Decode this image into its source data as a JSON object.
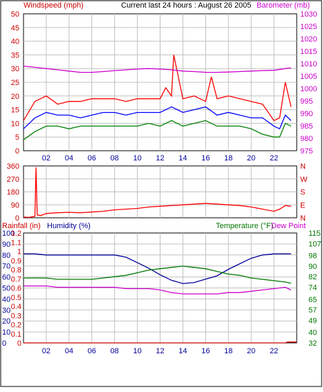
{
  "chart_data": [
    {
      "type": "line",
      "title": "Current last 24 hours : August 26 2005",
      "left_axis_label": "Windspeed (mph)",
      "right_axis_label": "Barometer (mb)",
      "x_ticks": [
        "02",
        "04",
        "06",
        "08",
        "10",
        "12",
        "14",
        "16",
        "18",
        "20",
        "22"
      ],
      "x_range_hours": [
        0,
        24
      ],
      "left_ticks": [
        "0",
        "5",
        "10",
        "15",
        "20",
        "25",
        "30",
        "35",
        "40",
        "45",
        "50"
      ],
      "left_ylim": [
        0,
        50
      ],
      "right_ticks": [
        "975",
        "980",
        "985",
        "990",
        "995",
        "1000",
        "1005",
        "1010",
        "1015",
        "1020",
        "1025",
        "1030"
      ],
      "right_ylim": [
        975,
        1030
      ],
      "grid": true,
      "colors": {
        "gust": "#ff0000",
        "speed": "#0000ff",
        "min": "#008000",
        "barometer": "#cc00cc",
        "left_axis": "#cc0000",
        "right_axis": "#cc00cc"
      },
      "series": [
        {
          "key": "gust",
          "x": [
            0,
            1,
            2,
            3,
            4,
            5,
            6,
            7,
            8,
            9,
            10,
            11,
            12,
            12.5,
            13,
            13.2,
            14,
            15,
            16,
            16.5,
            17,
            18,
            19,
            20,
            21,
            22,
            22.5,
            23,
            23.5
          ],
          "values": [
            11,
            18,
            20,
            17,
            18,
            18,
            19,
            19,
            19,
            18,
            19,
            19,
            19,
            23,
            20,
            35,
            19,
            20,
            18,
            27,
            19,
            20,
            19,
            18,
            17,
            11,
            12,
            25,
            16
          ]
        },
        {
          "key": "speed",
          "x": [
            0,
            1,
            2,
            3,
            4,
            5,
            6,
            7,
            8,
            9,
            10,
            11,
            12,
            13,
            14,
            15,
            16,
            17,
            18,
            19,
            20,
            21,
            22,
            22.5,
            23,
            23.5
          ],
          "values": [
            8,
            12,
            14,
            13,
            13,
            12,
            13,
            14,
            14,
            13,
            14,
            14,
            14,
            16,
            14,
            15,
            16,
            13,
            14,
            13,
            12,
            12,
            9,
            8,
            13,
            11
          ]
        },
        {
          "key": "min",
          "x": [
            0,
            1,
            2,
            3,
            4,
            5,
            6,
            7,
            8,
            9,
            10,
            11,
            12,
            13,
            14,
            15,
            16,
            17,
            18,
            19,
            20,
            21,
            22,
            22.5,
            23,
            23.5
          ],
          "values": [
            4,
            7,
            9,
            9,
            8,
            9,
            9,
            9,
            9,
            9,
            9,
            10,
            9,
            11,
            9,
            10,
            11,
            9,
            9,
            9,
            8,
            6,
            5,
            5,
            10,
            9
          ]
        },
        {
          "key": "barometer",
          "x": [
            0,
            1,
            2,
            3,
            4,
            5,
            6,
            7,
            8,
            9,
            10,
            11,
            12,
            13,
            14,
            15,
            16,
            17,
            18,
            19,
            20,
            21,
            22,
            23,
            23.5
          ],
          "values": [
            1009,
            1008.5,
            1008,
            1007.5,
            1007,
            1006.5,
            1006.5,
            1006.8,
            1007.2,
            1007.5,
            1007.8,
            1008,
            1007.8,
            1007.5,
            1007,
            1006.8,
            1006.5,
            1006.5,
            1006.6,
            1006.8,
            1007,
            1007.2,
            1007.3,
            1008,
            1008.3
          ]
        }
      ]
    },
    {
      "type": "line",
      "title": "",
      "left_ticks": [
        "0",
        "90",
        "180",
        "270",
        "360"
      ],
      "left_ylim": [
        0,
        360
      ],
      "right_ticks": [
        "N",
        "E",
        "S",
        "W",
        "N"
      ],
      "x_ticks": [],
      "grid": true,
      "colors": {
        "direction": "#ff0000",
        "axis": "#cc0000"
      },
      "series": [
        {
          "key": "direction",
          "x": [
            0,
            0.5,
            1,
            1.1,
            1.2,
            1.5,
            2,
            3,
            4,
            5,
            6,
            7,
            8,
            9,
            10,
            11,
            12,
            13,
            14,
            15,
            16,
            17,
            18,
            19,
            20,
            21,
            22,
            22.5,
            23,
            23.5
          ],
          "values": [
            5,
            3,
            10,
            350,
            20,
            15,
            30,
            35,
            38,
            35,
            40,
            45,
            55,
            60,
            65,
            75,
            80,
            85,
            90,
            95,
            100,
            95,
            90,
            85,
            75,
            60,
            45,
            60,
            85,
            80
          ]
        }
      ]
    },
    {
      "type": "line",
      "title": "",
      "left_axis_label": "Rainfall (in)",
      "humidity_axis_label": "Humidity (%)",
      "right_axis_label": "Temperature (°F)",
      "right_axis_label2": "Dew Point",
      "x_ticks": [
        "02",
        "04",
        "06",
        "08",
        "10",
        "12",
        "14",
        "16",
        "18",
        "20",
        "22"
      ],
      "rain_ticks": [
        "0",
        "0.1",
        "0.2",
        "0.3",
        "0.4",
        "0.5",
        "0.6",
        "0.7",
        "0.8",
        "0.9",
        "1",
        "1.1",
        "1.2"
      ],
      "rain_ylim": [
        0,
        1.2
      ],
      "humidity_ticks": [
        "0",
        "10",
        "20",
        "30",
        "40",
        "50",
        "60",
        "70",
        "80",
        "90",
        "100"
      ],
      "humidity_ylim": [
        0,
        100
      ],
      "temp_ticks": [
        "32",
        "40",
        "49",
        "57",
        "65",
        "74",
        "82",
        "90",
        "98",
        "107",
        "115"
      ],
      "temp_ylim": [
        32,
        115
      ],
      "grid": true,
      "colors": {
        "rain": "#cc0000",
        "humidity": "#000099",
        "temperature": "#007700",
        "dewpoint": "#cc00cc"
      },
      "series": [
        {
          "key": "humidity",
          "x": [
            0,
            1,
            2,
            3,
            4,
            5,
            6,
            7,
            8,
            9,
            10,
            11,
            12,
            13,
            14,
            15,
            16,
            17,
            18,
            19,
            20,
            21,
            22,
            23,
            23.5
          ],
          "values": [
            81,
            81,
            80,
            80,
            80,
            80,
            80,
            80,
            80,
            78,
            73,
            68,
            62,
            57,
            54,
            55,
            58,
            61,
            67,
            72,
            77,
            80,
            81,
            81,
            81
          ]
        },
        {
          "key": "temperature",
          "x": [
            0,
            1,
            2,
            3,
            4,
            5,
            6,
            7,
            8,
            9,
            10,
            11,
            12,
            13,
            14,
            15,
            16,
            17,
            18,
            19,
            20,
            21,
            22,
            23,
            23.5
          ],
          "values": [
            81,
            81,
            81,
            80,
            80,
            80,
            80,
            81,
            82,
            83,
            85,
            87,
            88,
            89,
            90,
            89,
            88,
            86,
            84,
            83,
            81,
            80,
            79,
            78,
            77
          ]
        },
        {
          "key": "dewpoint",
          "x": [
            0,
            1,
            2,
            3,
            4,
            5,
            6,
            7,
            8,
            9,
            10,
            11,
            12,
            13,
            14,
            15,
            16,
            17,
            18,
            19,
            20,
            21,
            22,
            23,
            23.5
          ],
          "values": [
            75,
            75,
            75,
            74,
            74,
            74,
            74,
            74,
            74,
            73,
            73,
            73,
            72,
            70,
            69,
            69,
            69,
            69,
            70,
            70,
            71,
            72,
            73,
            74,
            72
          ]
        },
        {
          "key": "rain",
          "x": [
            0,
            23,
            23.2,
            24
          ],
          "values": [
            0,
            0,
            0.01,
            0.01
          ]
        }
      ]
    }
  ]
}
